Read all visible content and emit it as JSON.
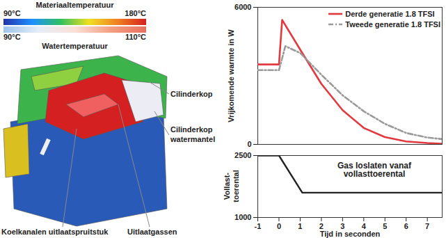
{
  "figure": {
    "color_scales": [
      {
        "title": "Materiaaltemperatuur",
        "range": [
          90,
          180
        ],
        "ticks": [
          {
            "value": 90,
            "label": "90°C"
          },
          {
            "value": 180,
            "label": "180°C"
          }
        ]
      },
      {
        "title": "Watertemperatuur",
        "range": [
          90,
          110
        ],
        "ticks": [
          {
            "value": 90,
            "label": "90°C"
          },
          {
            "value": 110,
            "label": "110°C"
          }
        ]
      }
    ],
    "labels": {
      "cylinder_head": "Cilinderkop",
      "water_jacket": "Cilinderkop\nwatermantel",
      "cooling_channels": "Koelkanalen uitlaatspruitstuk",
      "exhaust": "Uitlaatgassen"
    }
  },
  "chart_data": [
    {
      "type": "line",
      "y_label": "Vrijkomende warmte in W",
      "xlim": [
        -1,
        7.7
      ],
      "ylim": [
        0,
        6000
      ],
      "yticks": [
        0,
        6000
      ],
      "tick_labels": "y",
      "legend": "top-right",
      "series": [
        {
          "name": "Derde generatie 1.8 TFSI",
          "color": "#e2383f",
          "line_style": "solid",
          "x": [
            -1,
            0,
            0.15,
            1,
            2,
            3,
            4,
            5,
            6,
            7,
            7.7
          ],
          "values": [
            3500,
            3500,
            5450,
            4150,
            2650,
            1500,
            720,
            320,
            130,
            60,
            30
          ]
        },
        {
          "name": "Tweede generatie 1.8 TFSI",
          "color": "#9a9a9a",
          "line_style": "dashdot",
          "x": [
            -1,
            0,
            0.3,
            1,
            2,
            3,
            4,
            5,
            6,
            7,
            7.7
          ],
          "values": [
            3250,
            3250,
            4300,
            4000,
            3050,
            2150,
            1450,
            900,
            500,
            300,
            230
          ]
        }
      ]
    },
    {
      "type": "line",
      "y_label": "Vollast-\ntoerental",
      "x_label": "Tijd in seconden",
      "xlim": [
        -1,
        7.7
      ],
      "ylim": [
        1000,
        2500
      ],
      "xticks": [
        -1,
        0,
        1,
        2,
        3,
        4,
        5,
        6,
        7
      ],
      "yticks": [
        1000,
        2500
      ],
      "annotation": "Gas loslaten vanaf\nvollasttoerental",
      "color": "#222222",
      "line_style": "solid",
      "x": [
        -1,
        0,
        1.1,
        7.7
      ],
      "values": [
        2500,
        2500,
        1600,
        1600
      ]
    }
  ]
}
